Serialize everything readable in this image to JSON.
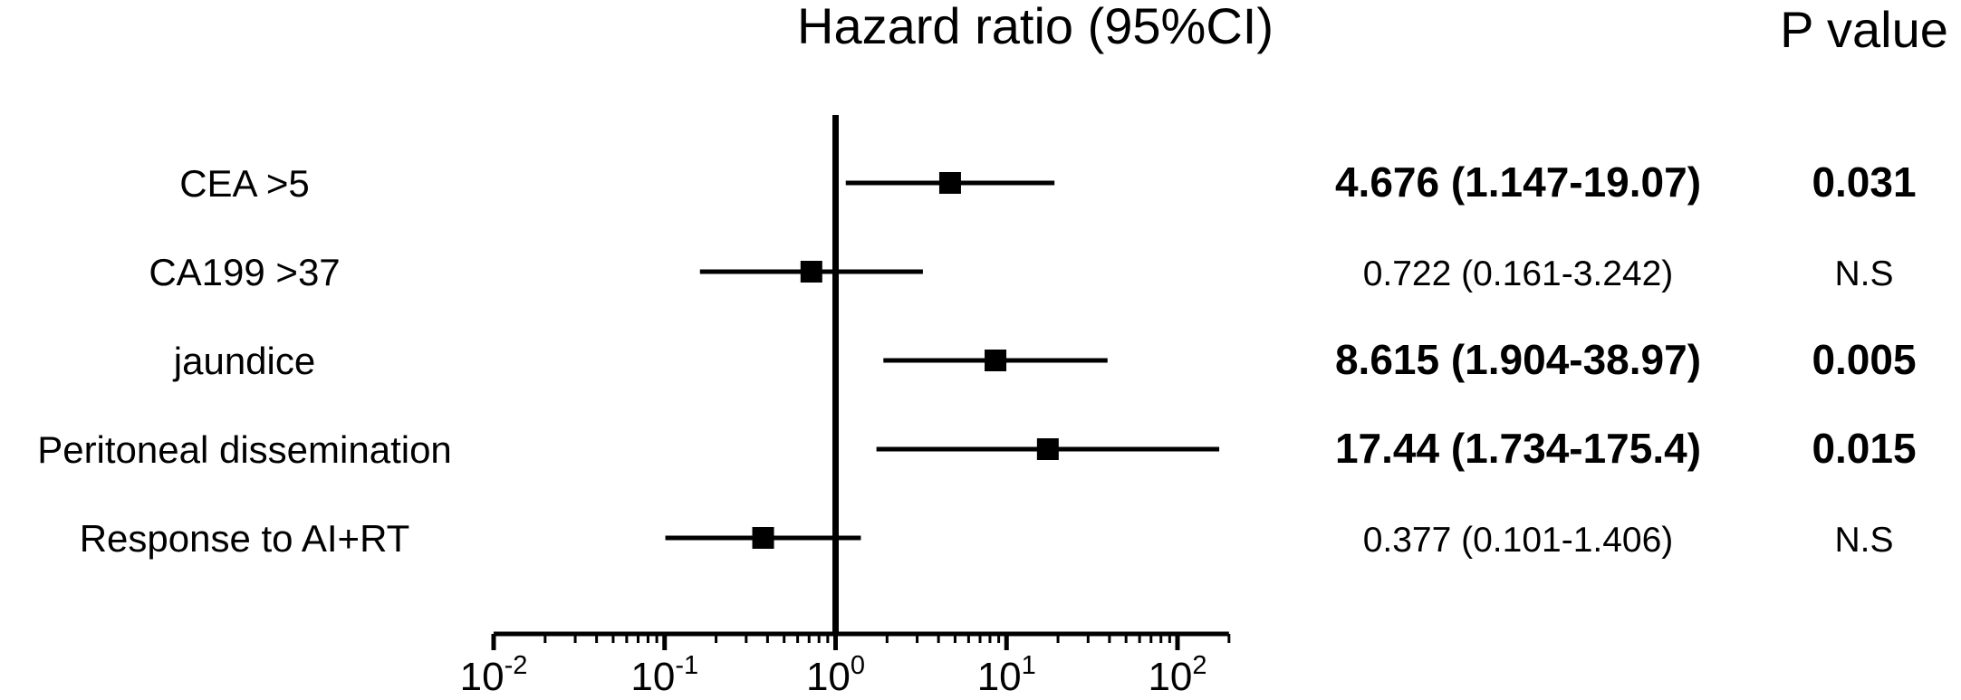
{
  "chart_data": {
    "type": "forest",
    "title": "Hazard ratio (95%CI)",
    "pvalue_header": "P value",
    "x_scale": "log",
    "xlim": [
      0.01,
      200
    ],
    "reference_line": 1,
    "x_ticks": [
      {
        "value": 0.01,
        "base": "10",
        "exp": "-2"
      },
      {
        "value": 0.1,
        "base": "10",
        "exp": "-1"
      },
      {
        "value": 1,
        "base": "10",
        "exp": "0"
      },
      {
        "value": 10,
        "base": "10",
        "exp": "1"
      },
      {
        "value": 100,
        "base": "10",
        "exp": "2"
      }
    ],
    "rows": [
      {
        "label": "CEA >5",
        "hr": 4.676,
        "lower": 1.147,
        "upper": 19.07,
        "text": "4.676 (1.147-19.07)",
        "p": "0.031",
        "significant": true
      },
      {
        "label": "CA199 >37",
        "hr": 0.722,
        "lower": 0.161,
        "upper": 3.242,
        "text": "0.722 (0.161-3.242)",
        "p": "N.S",
        "significant": false
      },
      {
        "label": "jaundice",
        "hr": 8.615,
        "lower": 1.904,
        "upper": 38.97,
        "text": "8.615 (1.904-38.97)",
        "p": "0.005",
        "significant": true
      },
      {
        "label": "Peritoneal dissemination",
        "hr": 17.44,
        "lower": 1.734,
        "upper": 175.4,
        "text": "17.44 (1.734-175.4)",
        "p": "0.015",
        "significant": true
      },
      {
        "label": "Response to AI+RT",
        "hr": 0.377,
        "lower": 0.101,
        "upper": 1.406,
        "text": "0.377 (0.101-1.406)",
        "p": "N.S",
        "significant": false
      }
    ]
  }
}
